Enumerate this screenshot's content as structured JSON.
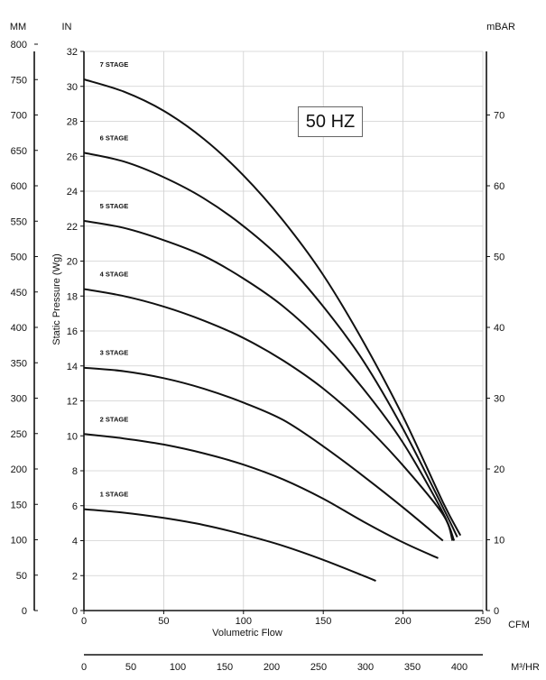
{
  "chart_data": {
    "type": "line",
    "title": "",
    "frequency_label": "50 HZ",
    "xlabel": "Volumetric Flow",
    "ylabel": "Static Pressure (Wg)",
    "x_unit": "CFM",
    "y_unit": "IN",
    "xlim": [
      0,
      250
    ],
    "ylim": [
      0,
      32
    ],
    "x_ticks": [
      0,
      50,
      100,
      150,
      200,
      250
    ],
    "y_ticks": [
      0,
      2,
      4,
      6,
      8,
      10,
      12,
      14,
      16,
      18,
      20,
      22,
      24,
      26,
      28,
      30,
      32
    ],
    "grid": true,
    "secondary_axes": {
      "left_mm": {
        "unit": "MM",
        "range": [
          0,
          800
        ],
        "ticks": [
          0,
          50,
          100,
          150,
          200,
          250,
          300,
          350,
          400,
          450,
          500,
          550,
          600,
          650,
          700,
          750,
          800
        ]
      },
      "right_mbar": {
        "unit": "mBAR",
        "range": [
          0,
          80
        ],
        "ticks": [
          0,
          10,
          20,
          30,
          40,
          50,
          60,
          70
        ]
      },
      "bottom_m3hr": {
        "unit": "M³/HR",
        "range": [
          0,
          425
        ],
        "ticks": [
          0,
          50,
          100,
          150,
          200,
          250,
          300,
          350,
          400
        ]
      }
    },
    "series": [
      {
        "name": "1 STAGE",
        "x": [
          0,
          25,
          50,
          75,
          100,
          125,
          150,
          175,
          183
        ],
        "y": [
          5.8,
          5.6,
          5.3,
          4.9,
          4.35,
          3.7,
          2.9,
          2.0,
          1.7
        ]
      },
      {
        "name": "2 STAGE",
        "x": [
          0,
          25,
          50,
          75,
          100,
          125,
          150,
          175,
          200,
          222
        ],
        "y": [
          10.1,
          9.85,
          9.5,
          9.0,
          8.35,
          7.5,
          6.4,
          5.1,
          3.9,
          3.0
        ]
      },
      {
        "name": "3 STAGE",
        "x": [
          0,
          25,
          50,
          75,
          100,
          125,
          150,
          175,
          200,
          225
        ],
        "y": [
          13.9,
          13.7,
          13.3,
          12.7,
          11.9,
          10.9,
          9.4,
          7.7,
          5.9,
          4.0
        ]
      },
      {
        "name": "4 STAGE",
        "x": [
          0,
          25,
          50,
          75,
          100,
          125,
          150,
          175,
          200,
          225,
          231
        ],
        "y": [
          18.4,
          18.0,
          17.4,
          16.6,
          15.6,
          14.3,
          12.7,
          10.7,
          8.3,
          5.5,
          4.0
        ]
      },
      {
        "name": "5 STAGE",
        "x": [
          0,
          25,
          50,
          75,
          100,
          125,
          150,
          175,
          200,
          225,
          232
        ],
        "y": [
          22.3,
          21.9,
          21.2,
          20.3,
          19.0,
          17.4,
          15.3,
          12.7,
          9.6,
          5.6,
          4.0
        ]
      },
      {
        "name": "6 STAGE",
        "x": [
          0,
          25,
          50,
          75,
          100,
          125,
          150,
          175,
          200,
          225,
          234
        ],
        "y": [
          26.2,
          25.7,
          24.8,
          23.6,
          22.0,
          20.0,
          17.4,
          14.3,
          10.4,
          5.9,
          4.2
        ]
      },
      {
        "name": "7 STAGE",
        "x": [
          0,
          25,
          50,
          75,
          100,
          125,
          150,
          175,
          200,
          225,
          236
        ],
        "y": [
          30.4,
          29.7,
          28.6,
          27.0,
          24.9,
          22.3,
          19.2,
          15.4,
          11.1,
          6.2,
          4.3
        ]
      }
    ]
  }
}
